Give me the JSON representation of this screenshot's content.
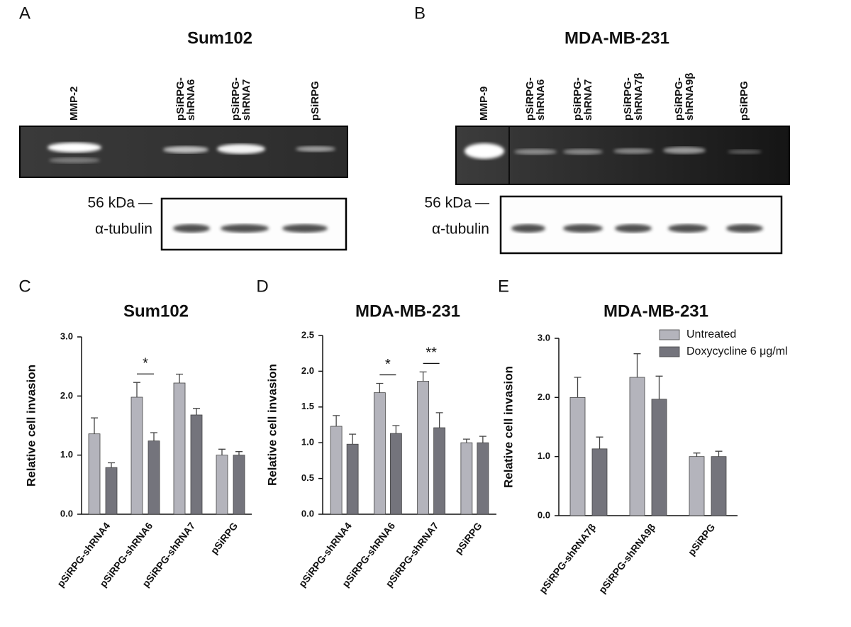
{
  "gels": [
    {
      "letter": "A",
      "title": "Sum102",
      "lanes": [
        [
          "MMP-2"
        ],
        [
          "pSiRPG-",
          "shRNA6"
        ],
        [
          "pSiRPG-",
          "shRNA7"
        ],
        [
          "pSiRPG"
        ]
      ],
      "marker": "56 kDa",
      "protein": "α-tubulin"
    },
    {
      "letter": "B",
      "title": "MDA-MB-231",
      "lanes": [
        [
          "MMP-9"
        ],
        [
          "pSiRPG-",
          "shRNA6"
        ],
        [
          "pSiRPG-",
          "shRNA7"
        ],
        [
          "pSiRPG-",
          "shRNA7β"
        ],
        [
          "pSiRPG-",
          "shRNA9β"
        ],
        [
          "pSiRPG"
        ]
      ],
      "marker": "56 kDa",
      "protein": "α-tubulin"
    }
  ],
  "chart_data": [
    {
      "type": "bar",
      "panel": "C",
      "title": "Sum102",
      "y_label": "Relative cell invasion",
      "categories": [
        "pSiRPG-shRNA4",
        "pSiRPG-shRNA6",
        "pSiRPG-shRNA7",
        "pSiRPG"
      ],
      "series": [
        {
          "color": "#b4b4bc",
          "values": [
            1.36,
            1.98,
            2.22,
            1.0
          ],
          "errors": [
            0.27,
            0.25,
            0.15,
            0.1
          ]
        },
        {
          "color": "#74747c",
          "values": [
            0.79,
            1.24,
            1.68,
            1.0
          ],
          "errors": [
            0.08,
            0.14,
            0.11,
            0.06
          ]
        }
      ],
      "annotations": [
        null,
        "*",
        null,
        null
      ],
      "ylim": [
        0,
        3
      ],
      "yticks": [
        {
          "value": 0,
          "label": "0.0"
        },
        {
          "value": 1,
          "label": "1.0"
        },
        {
          "value": 2,
          "label": "2.0"
        },
        {
          "value": 3,
          "label": "3.0"
        }
      ]
    },
    {
      "type": "bar",
      "panel": "D",
      "title": "MDA-MB-231",
      "y_label": "Relative cell invasion",
      "categories": [
        "pSiRPG-shRNA4",
        "pSiRPG-shRNA6",
        "pSiRPG-shRNA7",
        "pSiRPG"
      ],
      "series": [
        {
          "color": "#b4b4bc",
          "values": [
            1.23,
            1.7,
            1.86,
            1.0
          ],
          "errors": [
            0.15,
            0.13,
            0.13,
            0.05
          ]
        },
        {
          "color": "#74747c",
          "values": [
            0.98,
            1.13,
            1.21,
            1.0
          ],
          "errors": [
            0.14,
            0.11,
            0.21,
            0.09
          ]
        }
      ],
      "annotations": [
        null,
        "*",
        "**",
        null
      ],
      "ylim": [
        0,
        2.5
      ],
      "yticks": [
        {
          "value": 0,
          "label": "0.0"
        },
        0.5,
        {
          "value": 1,
          "label": "1.0"
        },
        1.5,
        {
          "value": 2,
          "label": "2.0"
        },
        2.5
      ]
    },
    {
      "type": "bar",
      "panel": "E",
      "title": "MDA-MB-231",
      "y_label": "Relative cell invasion",
      "categories": [
        "pSiRPG-shRNA7β",
        "pSiRPG-shRNA9β",
        "pSiRPG"
      ],
      "series": [
        {
          "name": "Untreated",
          "color": "#b4b4bc",
          "values": [
            2.0,
            2.34,
            1.0
          ],
          "errors": [
            0.34,
            0.4,
            0.06
          ]
        },
        {
          "name": "Doxycycline 6 μg/ml",
          "color": "#74747c",
          "values": [
            1.13,
            1.97,
            1.0
          ],
          "errors": [
            0.2,
            0.39,
            0.09
          ]
        }
      ],
      "legend": "upper right",
      "ylim": [
        0,
        3
      ],
      "yticks": [
        {
          "value": 0,
          "label": "0.0"
        },
        {
          "value": 1,
          "label": "1.0"
        },
        {
          "value": 2,
          "label": "2.0"
        },
        {
          "value": 3,
          "label": "3.0"
        }
      ]
    }
  ]
}
